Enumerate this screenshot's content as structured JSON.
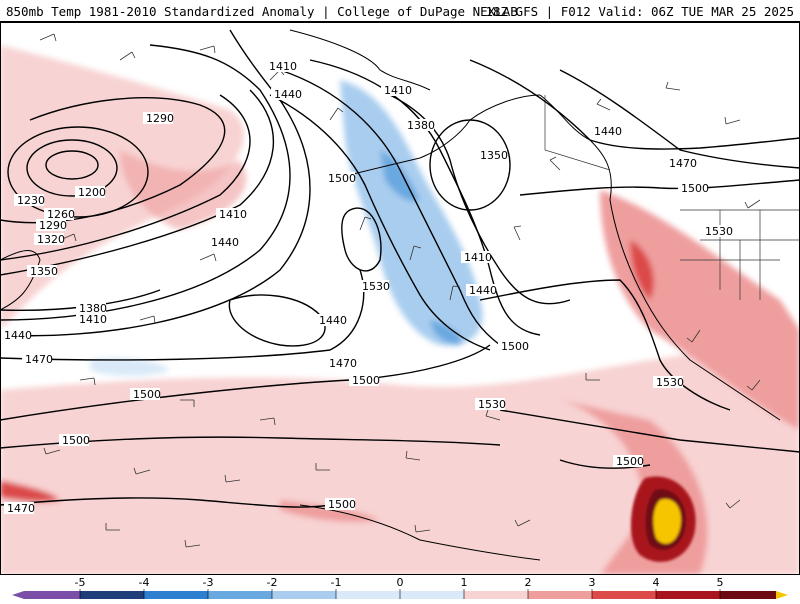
{
  "header": {
    "title_left": "850mb Temp 1981-2010 Standardized Anomaly | College of DuPage NEXLAB",
    "title_right": "18Z GFS | F012 Valid: 06Z TUE MAR 25 2025"
  },
  "contour_labels": [
    {
      "text": "1410"
    },
    {
      "text": "1290"
    },
    {
      "text": "1440"
    },
    {
      "text": "1410"
    },
    {
      "text": "1380"
    },
    {
      "text": "1440"
    },
    {
      "text": "1350"
    },
    {
      "text": "1470"
    },
    {
      "text": "1500"
    },
    {
      "text": "1200"
    },
    {
      "text": "1230"
    },
    {
      "text": "1260"
    },
    {
      "text": "1290"
    },
    {
      "text": "1320"
    },
    {
      "text": "1350"
    },
    {
      "text": "1410"
    },
    {
      "text": "1440"
    },
    {
      "text": "1530"
    },
    {
      "text": "1410"
    },
    {
      "text": "1500"
    },
    {
      "text": "1440"
    },
    {
      "text": "1380"
    },
    {
      "text": "1410"
    },
    {
      "text": "1440"
    },
    {
      "text": "1530"
    },
    {
      "text": "1440"
    },
    {
      "text": "1470"
    },
    {
      "text": "1470"
    },
    {
      "text": "1500"
    },
    {
      "text": "1500"
    },
    {
      "text": "1500"
    },
    {
      "text": "1530"
    },
    {
      "text": "1500"
    },
    {
      "text": "1530"
    },
    {
      "text": "1470"
    },
    {
      "text": "1500"
    },
    {
      "text": "1500"
    }
  ],
  "legend": {
    "ticks": [
      "-5",
      "-4",
      "-3",
      "-2",
      "-1",
      "0",
      "1",
      "2",
      "3",
      "4",
      "5"
    ],
    "colors": {
      "deep_purple": "#7b4fa8",
      "navy": "#1f3f7a",
      "blue": "#2e7fd0",
      "mid_blue": "#6aa8e0",
      "light_blue": "#a9cdef",
      "pale_blue": "#d9e9f8",
      "pale_red": "#f8d3d3",
      "light_red": "#ef9e9e",
      "red": "#dc4a4a",
      "dark_red": "#a8151c",
      "maroon": "#6e0b12",
      "yellow": "#f7c500"
    }
  }
}
